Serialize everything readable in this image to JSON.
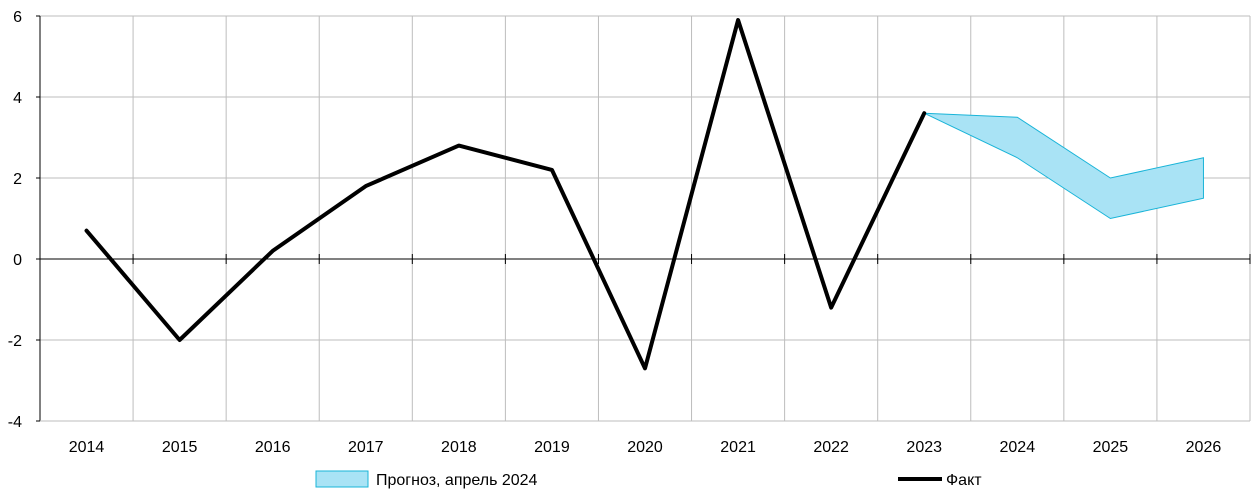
{
  "chart_data": {
    "type": "line",
    "title": "",
    "xlabel": "",
    "ylabel": "",
    "ylim": [
      -4,
      6
    ],
    "yticks": [
      "-4",
      "-2",
      "0",
      "2",
      "4",
      "6"
    ],
    "categories": [
      "2014",
      "2015",
      "2016",
      "2017",
      "2018",
      "2019",
      "2020",
      "2021",
      "2022",
      "2023",
      "2024",
      "2025",
      "2026"
    ],
    "grid": true,
    "legend_position": "bottom",
    "series": [
      {
        "name": "Факт",
        "kind": "line",
        "color": "#000000",
        "x": [
          "2014",
          "2015",
          "2016",
          "2017",
          "2018",
          "2019",
          "2020",
          "2021",
          "2022",
          "2023"
        ],
        "values": [
          0.7,
          -2.0,
          0.2,
          1.8,
          2.8,
          2.2,
          -2.7,
          5.9,
          -1.2,
          3.6
        ]
      },
      {
        "name": "Прогноз, апрель 2024",
        "kind": "band",
        "fill": "#a9e3f5",
        "stroke": "#19b4d8",
        "x": [
          "2023",
          "2024",
          "2025",
          "2026"
        ],
        "upper": [
          3.6,
          3.5,
          2.0,
          2.5
        ],
        "lower": [
          3.6,
          2.5,
          1.0,
          1.5
        ]
      }
    ]
  }
}
